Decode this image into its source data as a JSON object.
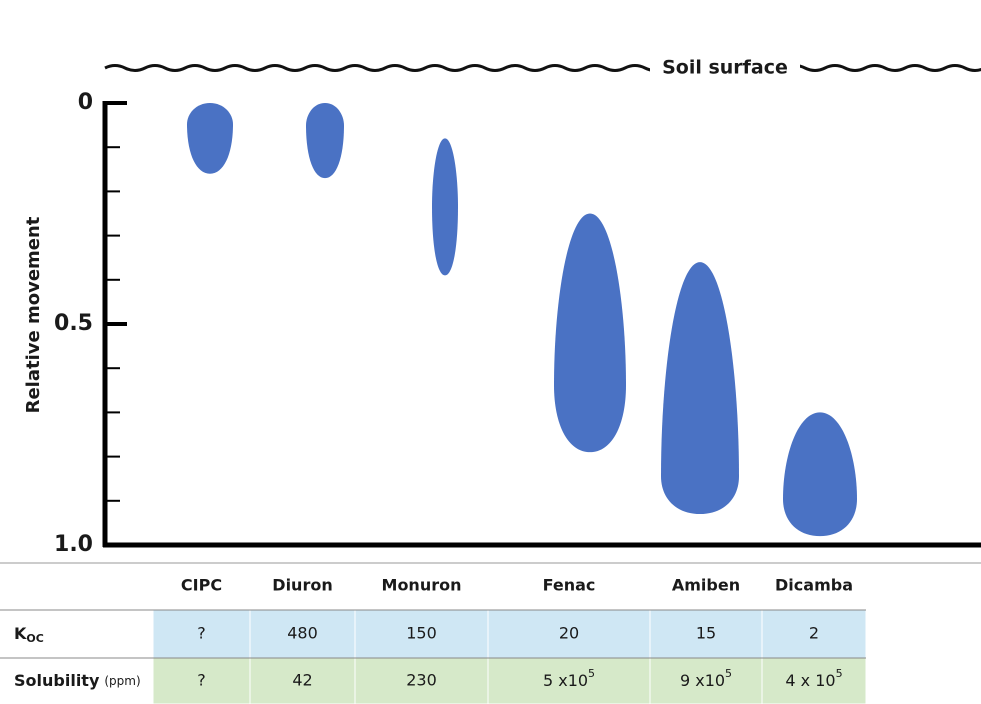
{
  "chart_data": {
    "type": "range",
    "annotation": "Soil surface",
    "y_label": "Relative movement",
    "categories": [
      "CIPC",
      "Diuron",
      "Monuron",
      "Fenac",
      "Amiben",
      "Dicamba"
    ],
    "ranges": [
      [
        0,
        0.16
      ],
      [
        0,
        0.17
      ],
      [
        0.08,
        0.39
      ],
      [
        0.25,
        0.79
      ],
      [
        0.36,
        0.93
      ],
      [
        0.7,
        0.98
      ]
    ],
    "color": "#4a72c4",
    "ylim": [
      0,
      1
    ],
    "yticks": [
      0,
      0.5,
      {
        "value": 1,
        "label": "1.0"
      }
    ],
    "minor_yticks": [
      0.1,
      0.2,
      0.3,
      0.4,
      0.6,
      0.7,
      0.8,
      0.9
    ]
  },
  "table": {
    "rows": [
      {
        "label": {
          "main": "K",
          "sub": "OC"
        },
        "cells": [
          "?",
          "480",
          "150",
          "20",
          "15",
          "2"
        ],
        "color": "#cfe7f4"
      },
      {
        "label": {
          "main": "Solubility",
          "unit": "(ppm)"
        },
        "cells": [
          "?",
          "42",
          "230",
          {
            "base": "5 x10",
            "exp": "5"
          },
          {
            "base": "9 x10",
            "exp": "5"
          },
          {
            "base": "4 x 10",
            "exp": "5"
          }
        ],
        "color": "#d6e9c9"
      }
    ]
  }
}
